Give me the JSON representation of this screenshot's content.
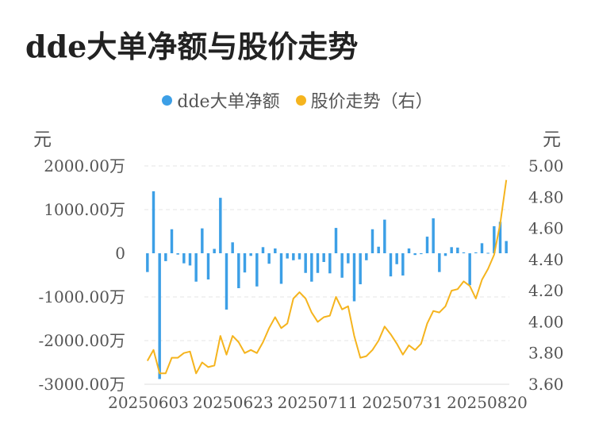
{
  "title": "dde大单净额与股价走势",
  "legend": [
    {
      "label": "dde大单净额",
      "color": "#3c9fe6"
    },
    {
      "label": "股价走势（右）",
      "color": "#f5b41e"
    }
  ],
  "left_unit": "元",
  "right_unit": "元",
  "chart_data": {
    "type": "bar+line",
    "x_tick_labels": [
      "20250603",
      "20250623",
      "20250711",
      "20250731",
      "20250820"
    ],
    "left_axis": {
      "ticks": [
        "2000.00万",
        "1000.00万",
        "0",
        "-1000.00万",
        "-2000.00万",
        "-3000.00万"
      ],
      "range": [
        -3000,
        2000
      ],
      "unit": "万"
    },
    "right_axis": {
      "ticks": [
        "5.00",
        "4.80",
        "4.60",
        "4.40",
        "4.20",
        "4.00",
        "3.80",
        "3.60"
      ],
      "range": [
        3.6,
        5.0
      ]
    },
    "grid": true,
    "legend_position": "top",
    "series": [
      {
        "name": "dde大单净额",
        "type": "bar",
        "values": [
          -430,
          1420,
          -2880,
          -180,
          550,
          -30,
          -230,
          -280,
          -650,
          570,
          -600,
          100,
          1270,
          -1290,
          250,
          -800,
          -440,
          -60,
          -760,
          140,
          -240,
          110,
          -700,
          -120,
          -160,
          -140,
          -450,
          -650,
          -450,
          -200,
          -460,
          580,
          -560,
          -230,
          -1100,
          -710,
          -160,
          550,
          150,
          770,
          -530,
          -250,
          -510,
          110,
          -40,
          -20,
          380,
          800,
          -430,
          -60,
          140,
          130,
          20,
          -730,
          20,
          230,
          10,
          620,
          720,
          280
        ]
      },
      {
        "name": "股价走势（右）",
        "type": "line",
        "values": [
          3.75,
          3.82,
          3.67,
          3.67,
          3.77,
          3.77,
          3.8,
          3.81,
          3.67,
          3.74,
          3.71,
          3.72,
          3.91,
          3.79,
          3.91,
          3.87,
          3.8,
          3.82,
          3.8,
          3.87,
          3.96,
          4.03,
          3.96,
          3.99,
          4.15,
          4.19,
          4.15,
          4.06,
          4.0,
          4.03,
          4.04,
          4.16,
          4.08,
          4.1,
          3.91,
          3.77,
          3.78,
          3.82,
          3.88,
          3.97,
          3.92,
          3.86,
          3.79,
          3.85,
          3.82,
          3.86,
          3.99,
          4.07,
          4.06,
          4.1,
          4.2,
          4.21,
          4.26,
          4.23,
          4.15,
          4.27,
          4.34,
          4.43,
          4.63,
          4.91
        ]
      }
    ]
  }
}
